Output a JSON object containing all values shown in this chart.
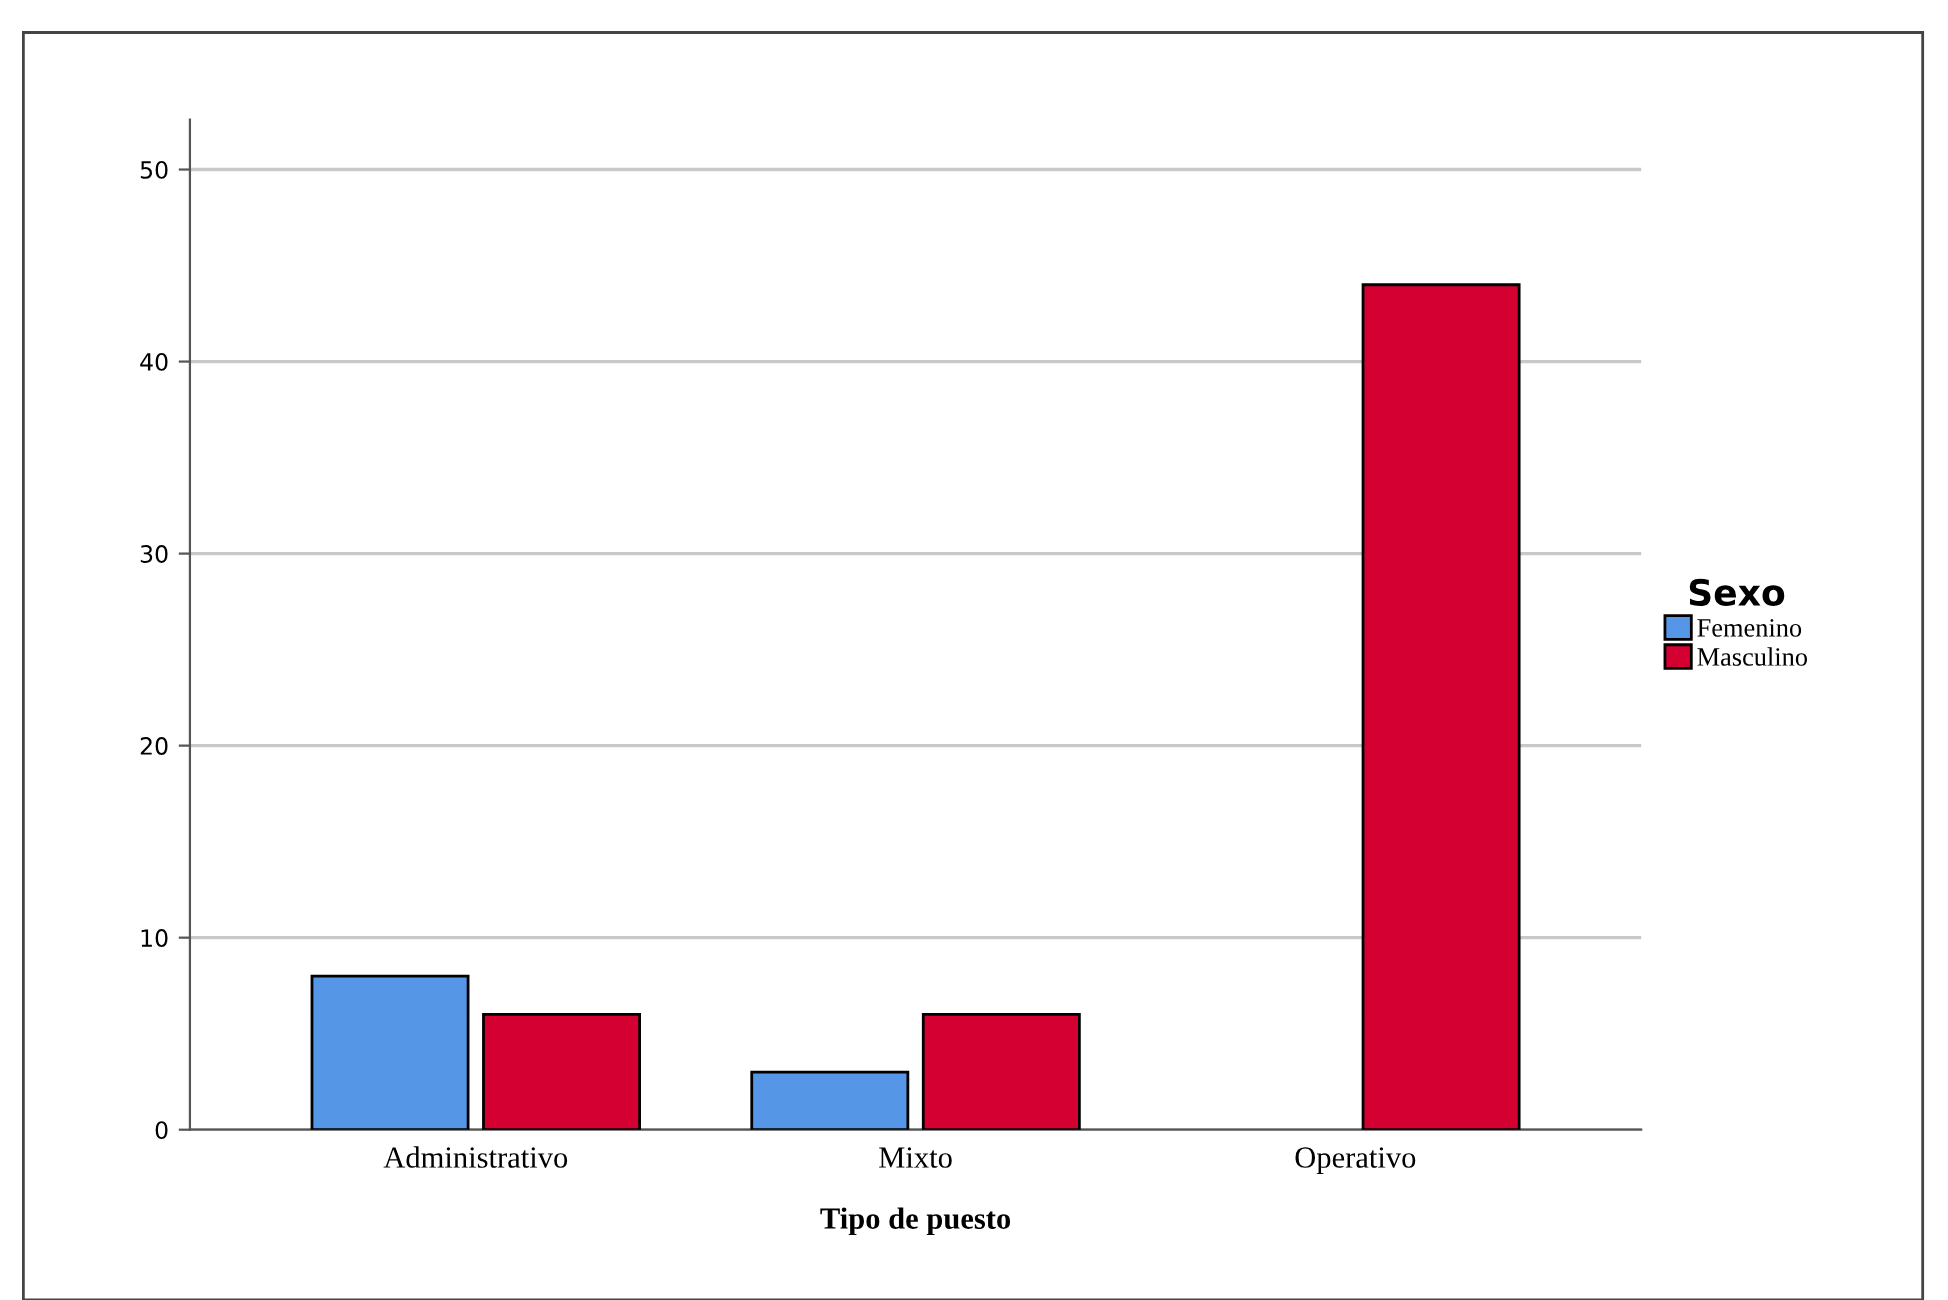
{
  "chart_data": {
    "type": "bar",
    "xlabel": "Tipo de puesto",
    "legend_title": "Sexo",
    "categories": [
      "Administrativo",
      "Mixto",
      "Operativo"
    ],
    "series": [
      {
        "name": "Femenino",
        "color": "#5596e6",
        "values": [
          8,
          3,
          null
        ]
      },
      {
        "name": "Masculino",
        "color": "#d40032",
        "values": [
          6,
          6,
          44
        ]
      }
    ],
    "ylim": [
      0,
      52.6
    ],
    "yticks": [
      0,
      10,
      20,
      30,
      40,
      50
    ],
    "grid": "y",
    "legend": "right"
  }
}
